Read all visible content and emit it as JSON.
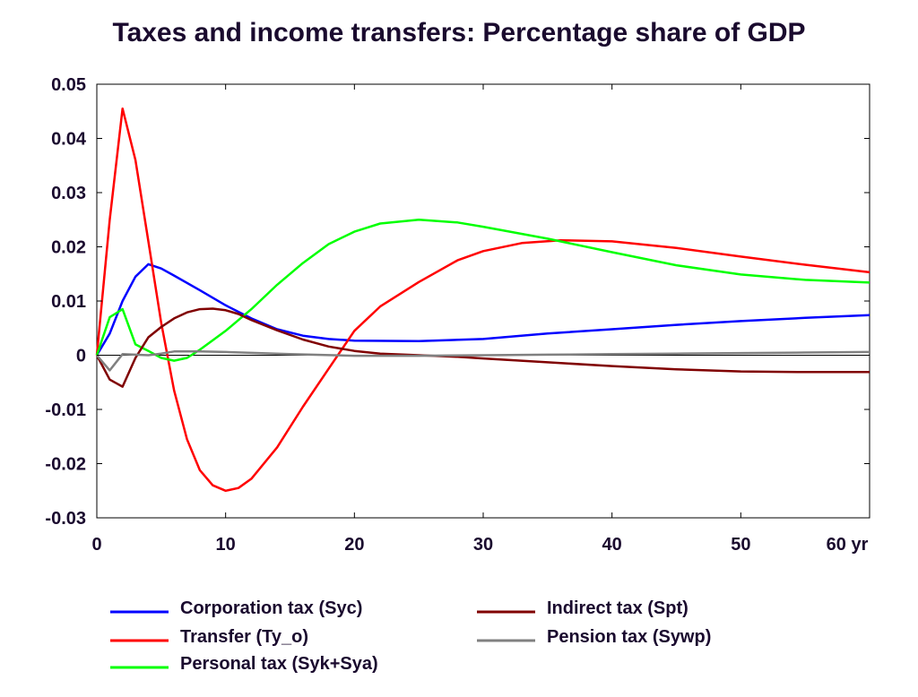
{
  "chart_data": {
    "type": "line",
    "title": "Taxes and income transfers: Percentage share of GDP",
    "xlabel": "",
    "ylabel": "",
    "x_unit_label": "yr",
    "xlim": [
      0,
      60
    ],
    "ylim": [
      -0.03,
      0.05
    ],
    "x_ticks": [
      "0",
      "10",
      "20",
      "30",
      "40",
      "50",
      "60"
    ],
    "y_ticks": [
      "0.05",
      "0.04",
      "0.03",
      "0.02",
      "0.01",
      "0",
      "-0.01",
      "-0.02",
      "-0.03"
    ],
    "grid": false,
    "legend_position": "bottom",
    "series": [
      {
        "name": "Corporation tax (Syc)",
        "color": "#0000ff",
        "x": [
          0,
          1,
          2,
          3,
          4,
          5,
          6,
          8,
          10,
          12,
          14,
          16,
          18,
          20,
          25,
          30,
          35,
          40,
          45,
          50,
          55,
          60
        ],
        "y": [
          0,
          0.004,
          0.01,
          0.0145,
          0.0168,
          0.016,
          0.0147,
          0.012,
          0.0092,
          0.0068,
          0.0048,
          0.0036,
          0.003,
          0.0027,
          0.0026,
          0.003,
          0.004,
          0.0048,
          0.0056,
          0.0063,
          0.0069,
          0.0074
        ]
      },
      {
        "name": "Transfer (Ty_o)",
        "color": "#ff0000",
        "x": [
          0,
          1,
          2,
          3,
          4,
          5,
          6,
          7,
          8,
          9,
          10,
          11,
          12,
          14,
          16,
          18,
          20,
          22,
          25,
          28,
          30,
          33,
          36,
          40,
          45,
          50,
          55,
          60
        ],
        "y": [
          0,
          0.025,
          0.0455,
          0.036,
          0.021,
          0.006,
          -0.0065,
          -0.0155,
          -0.0212,
          -0.024,
          -0.025,
          -0.0245,
          -0.0228,
          -0.017,
          -0.0095,
          -0.0025,
          0.0045,
          0.009,
          0.0135,
          0.0175,
          0.0192,
          0.0207,
          0.0212,
          0.021,
          0.0198,
          0.0182,
          0.0167,
          0.0153
        ]
      },
      {
        "name": "Personal tax (Syk+Sya)",
        "color": "#00ff00",
        "x": [
          0,
          1,
          2,
          3,
          4,
          5,
          6,
          7,
          8,
          10,
          12,
          14,
          16,
          18,
          20,
          22,
          25,
          28,
          30,
          35,
          40,
          45,
          50,
          55,
          60
        ],
        "y": [
          0,
          0.007,
          0.0085,
          0.002,
          0.0008,
          -0.0005,
          -0.001,
          -0.0005,
          0.001,
          0.0045,
          0.0085,
          0.013,
          0.017,
          0.0205,
          0.0228,
          0.0243,
          0.025,
          0.0245,
          0.0237,
          0.0215,
          0.019,
          0.0166,
          0.0149,
          0.0139,
          0.0134
        ]
      },
      {
        "name": "Indirect tax (Spt)",
        "color": "#800000",
        "x": [
          0,
          1,
          2,
          3,
          4,
          5,
          6,
          7,
          8,
          9,
          10,
          11,
          12,
          14,
          16,
          18,
          20,
          22,
          25,
          28,
          30,
          35,
          40,
          45,
          50,
          55,
          60
        ],
        "y": [
          0,
          -0.0045,
          -0.0058,
          -0.0005,
          0.0033,
          0.0052,
          0.0068,
          0.0079,
          0.0085,
          0.0086,
          0.0083,
          0.0076,
          0.0065,
          0.0046,
          0.0029,
          0.0016,
          0.0008,
          0.0003,
          0.0,
          -0.0003,
          -0.0006,
          -0.0013,
          -0.002,
          -0.0026,
          -0.003,
          -0.0031,
          -0.0031
        ]
      },
      {
        "name": "Pension tax (Sywp)",
        "color": "#808080",
        "x": [
          0,
          1,
          2,
          3,
          4,
          5,
          6,
          8,
          10,
          15,
          20,
          25,
          30,
          35,
          40,
          45,
          50,
          55,
          60
        ],
        "y": [
          0,
          -0.0028,
          0.0002,
          0.0001,
          0.0,
          0.0003,
          0.0007,
          0.0007,
          0.0006,
          0.0002,
          -0.0001,
          -0.0001,
          0.0,
          0.0001,
          0.0002,
          0.0003,
          0.0004,
          0.0005,
          0.0006
        ]
      }
    ]
  }
}
